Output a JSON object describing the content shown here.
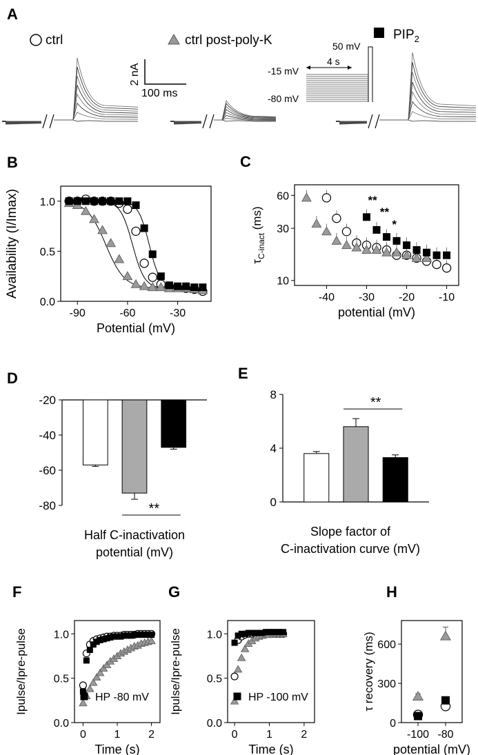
{
  "panel_a": {
    "letter": "A",
    "legend": {
      "ctrl": "ctrl",
      "post_polyk": "ctrl post-poly-K",
      "pip2": "PIP",
      "pip2_sub": "2"
    },
    "scalebar": {
      "current": "2 nA",
      "time": "100 ms"
    },
    "protocol": {
      "v_top": "50 mV",
      "v_mid": "-15 mV",
      "v_hold": "-80 mV",
      "duration": "4 s"
    }
  },
  "chart_data": [
    {
      "id": "B",
      "letter": "B",
      "type": "scatter",
      "title": "",
      "xlabel": "Potential (mV)",
      "ylabel": "Availability (I/Imax)",
      "xlim": [
        -100,
        -10
      ],
      "ylim": [
        0,
        1.15
      ],
      "xticks": [
        -90,
        -60,
        -30
      ],
      "yticks": [
        0.0,
        0.5,
        1.0
      ],
      "series": [
        {
          "name": "ctrl",
          "marker": "circle",
          "x": [
            -95,
            -90,
            -85,
            -80,
            -75,
            -70,
            -65,
            -60,
            -55,
            -50,
            -45,
            -40,
            -35,
            -30,
            -25,
            -20,
            -15
          ],
          "y": [
            1.0,
            1.0,
            1.02,
            1.0,
            1.0,
            1.0,
            0.98,
            0.92,
            0.7,
            0.38,
            0.24,
            0.17,
            0.15,
            0.14,
            0.13,
            0.12,
            0.1
          ]
        },
        {
          "name": "ctrl post-poly-K",
          "marker": "triangle",
          "x": [
            -95,
            -90,
            -85,
            -80,
            -75,
            -70,
            -65,
            -60,
            -55,
            -50,
            -45,
            -40,
            -35,
            -30,
            -25,
            -20,
            -15
          ],
          "y": [
            0.98,
            0.96,
            0.9,
            0.82,
            0.71,
            0.58,
            0.42,
            0.25,
            0.17,
            0.15,
            0.14,
            0.14,
            0.13,
            0.13,
            0.13,
            0.12,
            0.11
          ]
        },
        {
          "name": "PIP2",
          "marker": "square",
          "x": [
            -95,
            -90,
            -85,
            -80,
            -75,
            -70,
            -65,
            -60,
            -55,
            -50,
            -45,
            -40,
            -35,
            -30,
            -25,
            -20,
            -15
          ],
          "y": [
            1.0,
            1.0,
            1.0,
            1.0,
            1.0,
            1.0,
            1.0,
            1.0,
            0.96,
            0.73,
            0.47,
            0.25,
            0.16,
            0.15,
            0.15,
            0.14,
            0.14
          ]
        }
      ]
    },
    {
      "id": "C",
      "letter": "C",
      "type": "scatter",
      "title": "",
      "xlabel": "potential (mV)",
      "ylabel": "τ",
      "ylabel_sub": "C-inact",
      "ylabel_unit": " (ms)",
      "xlim": [
        -48,
        -7
      ],
      "ylim": [
        9,
        75
      ],
      "yscale": "log",
      "xticks": [
        -40,
        -30,
        -20,
        -10
      ],
      "yticks": [
        10,
        30,
        60
      ],
      "annotations": [
        {
          "text": "**",
          "x": -30,
          "y": 50
        },
        {
          "text": "**",
          "x": -27,
          "y": 39
        },
        {
          "text": "*",
          "x": -24,
          "y": 30
        }
      ],
      "series": [
        {
          "name": "ctrl",
          "marker": "circle",
          "x": [
            -40,
            -37.5,
            -35,
            -32.5,
            -30,
            -27.5,
            -25,
            -22.5,
            -20,
            -17.5,
            -15,
            -12.5,
            -10
          ],
          "y": [
            57,
            37,
            28,
            22,
            21,
            20,
            19,
            17,
            17,
            16,
            15,
            14,
            13
          ]
        },
        {
          "name": "ctrl post-poly-K",
          "marker": "triangle",
          "x": [
            -45,
            -42.5,
            -40,
            -37.5,
            -35,
            -32.5,
            -30,
            -27.5,
            -25,
            -22.5,
            -20,
            -17.5,
            -15
          ],
          "y": [
            57,
            33,
            28,
            23,
            21,
            20,
            19,
            19,
            18,
            18,
            17,
            16,
            16
          ]
        },
        {
          "name": "PIP2",
          "marker": "square",
          "x": [
            -30,
            -27.5,
            -25,
            -22.5,
            -20,
            -17.5,
            -15,
            -12.5,
            -10
          ],
          "y": [
            38,
            29,
            25,
            23,
            21,
            19,
            18,
            17,
            17
          ]
        }
      ]
    },
    {
      "id": "D",
      "letter": "D",
      "type": "bar",
      "title": "",
      "xlabel": "Half C-inactivation potential (mV)",
      "ylabel": "",
      "ylim": [
        -80,
        -20
      ],
      "yticks": [
        -20,
        -40,
        -60,
        -80
      ],
      "categories": [
        "ctrl",
        "ctrl post-poly-K",
        "PIP2"
      ],
      "values": [
        -57,
        -73,
        -47
      ],
      "errors": [
        0.8,
        3.5,
        1.0
      ],
      "significance": "**"
    },
    {
      "id": "E",
      "letter": "E",
      "type": "bar",
      "title": "",
      "xlabel": "Slope factor of C-inactivation curve (mV)",
      "ylabel": "",
      "ylim": [
        0,
        8
      ],
      "yticks": [
        0,
        4,
        8
      ],
      "categories": [
        "ctrl",
        "ctrl post-poly-K",
        "PIP2"
      ],
      "values": [
        3.6,
        5.6,
        3.3
      ],
      "errors": [
        0.15,
        0.6,
        0.2
      ],
      "significance": "**"
    },
    {
      "id": "F",
      "letter": "F",
      "type": "scatter",
      "title": "",
      "xlabel": "Time (s)",
      "ylabel": "Ipulse/Ipre-pulse",
      "xlim": [
        -0.25,
        2.25
      ],
      "ylim": [
        0,
        1.15
      ],
      "xticks": [
        0,
        1,
        2
      ],
      "yticks": [
        0.0,
        0.5,
        1.0
      ],
      "annotation": "HP -80 mV",
      "series": [
        {
          "name": "ctrl",
          "marker": "circle",
          "x": [
            0,
            0.1,
            0.2,
            0.3,
            0.4,
            0.5,
            0.6,
            0.7,
            0.8,
            0.9,
            1.0,
            1.1,
            1.2,
            1.3,
            1.4,
            1.5,
            1.6,
            1.7,
            1.8,
            1.9,
            2.0
          ],
          "y": [
            0.42,
            0.78,
            0.88,
            0.92,
            0.94,
            0.95,
            0.96,
            0.97,
            0.97,
            0.98,
            0.98,
            0.98,
            0.99,
            0.99,
            0.99,
            0.99,
            1.0,
            1.0,
            1.0,
            1.0,
            1.0
          ]
        },
        {
          "name": "ctrl post-poly-K",
          "marker": "triangle",
          "x": [
            0,
            0.1,
            0.2,
            0.3,
            0.4,
            0.5,
            0.6,
            0.7,
            0.8,
            0.9,
            1.0,
            1.1,
            1.2,
            1.3,
            1.4,
            1.5,
            1.6,
            1.7,
            1.8,
            1.9,
            2.0
          ],
          "y": [
            0.22,
            0.3,
            0.38,
            0.45,
            0.51,
            0.56,
            0.61,
            0.65,
            0.69,
            0.72,
            0.75,
            0.78,
            0.8,
            0.82,
            0.84,
            0.86,
            0.87,
            0.89,
            0.9,
            0.91,
            0.92
          ]
        },
        {
          "name": "PIP2",
          "marker": "square",
          "x": [
            0,
            0.1,
            0.2,
            0.3,
            0.4,
            0.5,
            0.6,
            0.7,
            0.8,
            0.9,
            1.0,
            1.1,
            1.2,
            1.3,
            1.4,
            1.5,
            1.6,
            1.7,
            1.8,
            1.9,
            2.0
          ],
          "y": [
            0.35,
            0.7,
            0.82,
            0.88,
            0.91,
            0.93,
            0.94,
            0.95,
            0.96,
            0.97,
            0.97,
            0.97,
            0.98,
            0.98,
            0.98,
            0.99,
            0.99,
            0.99,
            0.99,
            0.99,
            0.99
          ]
        }
      ]
    },
    {
      "id": "G",
      "letter": "G",
      "type": "scatter",
      "title": "",
      "xlabel": "Time (s)",
      "ylabel": "Ipulse/Ipre-pulse",
      "xlim": [
        -0.2,
        2.3
      ],
      "ylim": [
        0,
        1.15
      ],
      "xticks": [
        0,
        1,
        2
      ],
      "yticks": [
        0.0,
        0.5,
        1.0
      ],
      "annotation": "HP -100 mV",
      "series": [
        {
          "name": "ctrl",
          "marker": "circle",
          "x": [
            0,
            0.1,
            0.2,
            0.3,
            0.4,
            0.5,
            0.6,
            0.7,
            0.8,
            0.9,
            1.0,
            1.1,
            1.2,
            1.3,
            1.4
          ],
          "y": [
            0.52,
            0.93,
            0.97,
            0.99,
            1.0,
            1.0,
            1.0,
            1.0,
            1.0,
            1.0,
            1.0,
            1.0,
            1.0,
            1.0,
            1.0
          ]
        },
        {
          "name": "ctrl post-poly-K",
          "marker": "triangle",
          "x": [
            0,
            0.1,
            0.2,
            0.3,
            0.4,
            0.5,
            0.6,
            0.7,
            0.8,
            0.9,
            1.0,
            1.1,
            1.2,
            1.3,
            1.4
          ],
          "y": [
            0.24,
            0.6,
            0.73,
            0.83,
            0.89,
            0.92,
            0.95,
            0.97,
            0.98,
            0.99,
            0.99,
            1.0,
            1.0,
            1.0,
            1.0
          ]
        },
        {
          "name": "PIP2",
          "marker": "square",
          "x": [
            0,
            0.1,
            0.2,
            0.3,
            0.4,
            0.5,
            0.6,
            0.7,
            0.8,
            0.9,
            1.0,
            1.1,
            1.2,
            1.3,
            1.4
          ],
          "y": [
            0.9,
            0.98,
            1.0,
            1.0,
            1.01,
            1.01,
            1.01,
            1.01,
            1.01,
            1.02,
            1.02,
            1.02,
            1.02,
            1.02,
            1.02
          ]
        }
      ]
    },
    {
      "id": "H",
      "letter": "H",
      "type": "scatter",
      "title": "",
      "xlabel": "potential (mV)",
      "ylabel": "τ recovery (ms)",
      "xlim": [
        -112,
        -68
      ],
      "ylim": [
        0,
        780
      ],
      "xticks": [
        -100,
        -80
      ],
      "yticks": [
        0,
        300,
        600
      ],
      "series": [
        {
          "name": "ctrl",
          "marker": "circle",
          "x": [
            -100,
            -80
          ],
          "y": [
            60,
            125
          ]
        },
        {
          "name": "ctrl post-poly-K",
          "marker": "triangle",
          "x": [
            -100,
            -80
          ],
          "y": [
            200,
            660
          ],
          "errors": [
            20,
            70
          ]
        },
        {
          "name": "PIP2",
          "marker": "square",
          "x": [
            -100,
            -80
          ],
          "y": [
            50,
            170
          ]
        }
      ]
    }
  ]
}
